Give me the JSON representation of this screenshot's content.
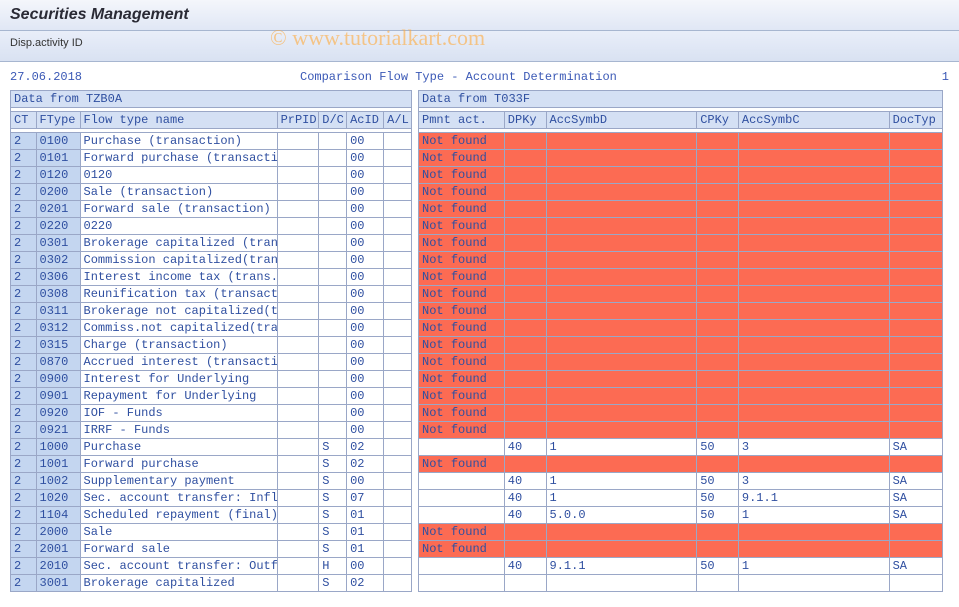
{
  "header": {
    "title": "Securities Management",
    "subtitle_label": "Disp.activity ID",
    "watermark": "© www.tutorialkart.com"
  },
  "meta": {
    "date": "27.06.2018",
    "report_title": "Comparison Flow Type - Account Determination",
    "page": "1"
  },
  "sections": {
    "left": "Data from TZB0A",
    "right": "Data from T033F"
  },
  "columns": {
    "ct": "CT",
    "ftype": "FType",
    "fname": "Flow type name",
    "prpid": "PrPID",
    "dc": "D/C",
    "acid": "AcID",
    "al": "A/L",
    "pa": "Pmnt act.",
    "dpky": "DPKy",
    "asd": "AccSymbD",
    "cpky": "CPKy",
    "asc": "AccSymbC",
    "dt": "DocTyp"
  },
  "not_found": "Not found",
  "rows": [
    {
      "ct": "2",
      "ft": "0100",
      "fn": "Purchase (transaction)",
      "pr": "",
      "dc": "",
      "ac": "00",
      "al": "",
      "nf": true
    },
    {
      "ct": "2",
      "ft": "0101",
      "fn": "Forward purchase (transacti",
      "pr": "",
      "dc": "",
      "ac": "00",
      "al": "",
      "nf": true
    },
    {
      "ct": "2",
      "ft": "0120",
      "fn": "0120",
      "pr": "",
      "dc": "",
      "ac": "00",
      "al": "",
      "nf": true
    },
    {
      "ct": "2",
      "ft": "0200",
      "fn": "Sale (transaction)",
      "pr": "",
      "dc": "",
      "ac": "00",
      "al": "",
      "nf": true
    },
    {
      "ct": "2",
      "ft": "0201",
      "fn": "Forward sale (transaction)",
      "pr": "",
      "dc": "",
      "ac": "00",
      "al": "",
      "nf": true
    },
    {
      "ct": "2",
      "ft": "0220",
      "fn": "0220",
      "pr": "",
      "dc": "",
      "ac": "00",
      "al": "",
      "nf": true
    },
    {
      "ct": "2",
      "ft": "0301",
      "fn": "Brokerage capitalized (tran",
      "pr": "",
      "dc": "",
      "ac": "00",
      "al": "",
      "nf": true
    },
    {
      "ct": "2",
      "ft": "0302",
      "fn": "Commission capitalized(tran",
      "pr": "",
      "dc": "",
      "ac": "00",
      "al": "",
      "nf": true
    },
    {
      "ct": "2",
      "ft": "0306",
      "fn": "Interest income tax (trans.",
      "pr": "",
      "dc": "",
      "ac": "00",
      "al": "",
      "nf": true
    },
    {
      "ct": "2",
      "ft": "0308",
      "fn": "Reunification tax (transact",
      "pr": "",
      "dc": "",
      "ac": "00",
      "al": "",
      "nf": true
    },
    {
      "ct": "2",
      "ft": "0311",
      "fn": "Brokerage not capitalized(t",
      "pr": "",
      "dc": "",
      "ac": "00",
      "al": "",
      "nf": true
    },
    {
      "ct": "2",
      "ft": "0312",
      "fn": "Commiss.not capitalized(tra",
      "pr": "",
      "dc": "",
      "ac": "00",
      "al": "",
      "nf": true
    },
    {
      "ct": "2",
      "ft": "0315",
      "fn": "Charge (transaction)",
      "pr": "",
      "dc": "",
      "ac": "00",
      "al": "",
      "nf": true
    },
    {
      "ct": "2",
      "ft": "0870",
      "fn": "Accrued interest (transacti",
      "pr": "",
      "dc": "",
      "ac": "00",
      "al": "",
      "nf": true
    },
    {
      "ct": "2",
      "ft": "0900",
      "fn": "Interest for Underlying",
      "pr": "",
      "dc": "",
      "ac": "00",
      "al": "",
      "nf": true
    },
    {
      "ct": "2",
      "ft": "0901",
      "fn": "Repayment for Underlying",
      "pr": "",
      "dc": "",
      "ac": "00",
      "al": "",
      "nf": true
    },
    {
      "ct": "2",
      "ft": "0920",
      "fn": "IOF - Funds",
      "pr": "",
      "dc": "",
      "ac": "00",
      "al": "",
      "nf": true
    },
    {
      "ct": "2",
      "ft": "0921",
      "fn": "IRRF - Funds",
      "pr": "",
      "dc": "",
      "ac": "00",
      "al": "",
      "nf": true
    },
    {
      "ct": "2",
      "ft": "1000",
      "fn": "Purchase",
      "pr": "",
      "dc": "S",
      "ac": "02",
      "al": "",
      "nf": false,
      "dp": "40",
      "asd": "1",
      "cp": "50",
      "asc": "3",
      "dt": "SA"
    },
    {
      "ct": "2",
      "ft": "1001",
      "fn": "Forward purchase",
      "pr": "",
      "dc": "S",
      "ac": "02",
      "al": "",
      "nf": true
    },
    {
      "ct": "2",
      "ft": "1002",
      "fn": "Supplementary payment",
      "pr": "",
      "dc": "S",
      "ac": "00",
      "al": "",
      "nf": false,
      "dp": "40",
      "asd": "1",
      "cp": "50",
      "asc": "3",
      "dt": "SA"
    },
    {
      "ct": "2",
      "ft": "1020",
      "fn": "Sec. account transfer: Infl",
      "pr": "",
      "dc": "S",
      "ac": "07",
      "al": "",
      "nf": false,
      "dp": "40",
      "asd": "1",
      "cp": "50",
      "asc": "9.1.1",
      "dt": "SA"
    },
    {
      "ct": "2",
      "ft": "1104",
      "fn": "Scheduled repayment (final)",
      "pr": "",
      "dc": "S",
      "ac": "01",
      "al": "",
      "nf": false,
      "dp": "40",
      "asd": "5.0.0",
      "cp": "50",
      "asc": "1",
      "dt": "SA"
    },
    {
      "ct": "2",
      "ft": "2000",
      "fn": "Sale",
      "pr": "",
      "dc": "S",
      "ac": "01",
      "al": "",
      "nf": true
    },
    {
      "ct": "2",
      "ft": "2001",
      "fn": "Forward sale",
      "pr": "",
      "dc": "S",
      "ac": "01",
      "al": "",
      "nf": true
    },
    {
      "ct": "2",
      "ft": "2010",
      "fn": "Sec. account transfer: Outf",
      "pr": "",
      "dc": "H",
      "ac": "00",
      "al": "",
      "nf": false,
      "dp": "40",
      "asd": "9.1.1",
      "cp": "50",
      "asc": "1",
      "dt": "SA"
    },
    {
      "ct": "2",
      "ft": "3001",
      "fn": "Brokerage capitalized",
      "pr": "",
      "dc": "S",
      "ac": "02",
      "al": "",
      "nf": false,
      "dp": "",
      "asd": "",
      "cp": "",
      "asc": "",
      "dt": ""
    }
  ],
  "style": {
    "colors": {
      "header_bg_top": "#f4f6fb",
      "header_bg_bot": "#e0e7f5",
      "sub_bg_top": "#e9eef9",
      "sub_bg_bot": "#d9e2f2",
      "border": "#9aa7c7",
      "section_bg": "#d4e0f4",
      "cell_blue": "#c4d6f0",
      "cell_red": "#fc6b53",
      "text": "#2f4fa0",
      "watermark": "rgba(255,170,60,0.6)"
    },
    "font_mono": "Courier New",
    "font_size_body": 12,
    "font_size_title": 16
  }
}
